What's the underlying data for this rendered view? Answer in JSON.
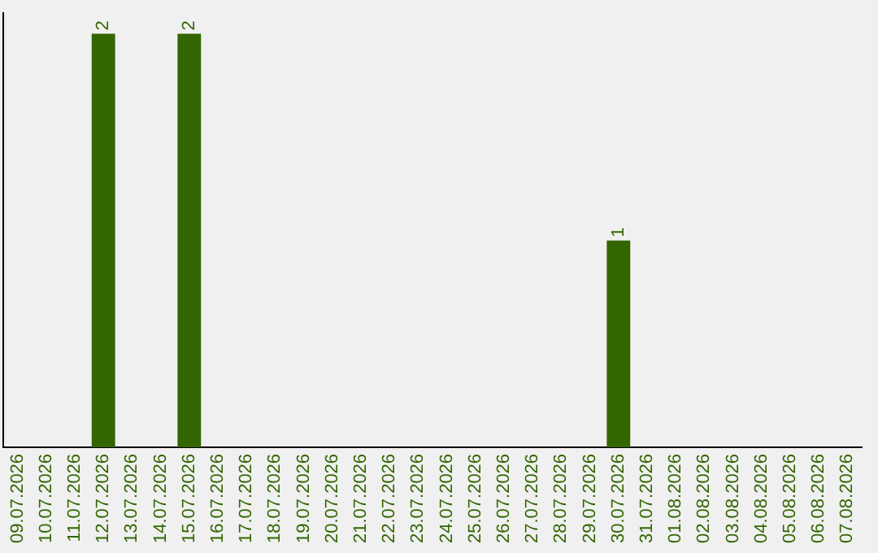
{
  "chart_data": {
    "type": "bar",
    "categories": [
      "09.07.2026",
      "10.07.2026",
      "11.07.2026",
      "12.07.2026",
      "13.07.2026",
      "14.07.2026",
      "15.07.2026",
      "16.07.2026",
      "17.07.2026",
      "18.07.2026",
      "19.07.2026",
      "20.07.2026",
      "21.07.2026",
      "22.07.2026",
      "23.07.2026",
      "24.07.2026",
      "25.07.2026",
      "26.07.2026",
      "27.07.2026",
      "28.07.2026",
      "29.07.2026",
      "30.07.2026",
      "31.07.2026",
      "01.08.2026",
      "02.08.2026",
      "03.08.2026",
      "04.08.2026",
      "05.08.2026",
      "06.08.2026",
      "07.08.2026"
    ],
    "values": [
      0,
      0,
      0,
      2,
      0,
      0,
      2,
      0,
      0,
      0,
      0,
      0,
      0,
      0,
      0,
      0,
      0,
      0,
      0,
      0,
      0,
      1,
      0,
      0,
      0,
      0,
      0,
      0,
      0,
      0
    ],
    "value_labels": [
      null,
      null,
      null,
      "2",
      null,
      null,
      "2",
      null,
      null,
      null,
      null,
      null,
      null,
      null,
      null,
      null,
      null,
      null,
      null,
      null,
      null,
      "1",
      null,
      null,
      null,
      null,
      null,
      null,
      null,
      null
    ],
    "color": "#336600",
    "ylim": [
      0,
      2.1
    ],
    "grid": false,
    "legend": false,
    "tick_labels": "x"
  }
}
